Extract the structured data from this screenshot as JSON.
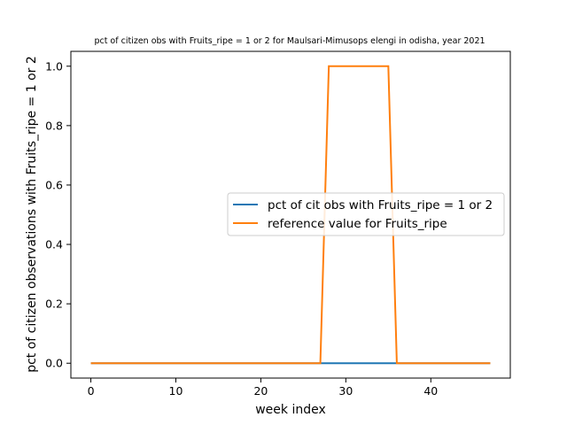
{
  "chart_data": {
    "type": "line",
    "title": "pct of citizen obs with Fruits_ripe = 1 or 2 for Maulsari-Mimusops elengi in odisha, year 2021",
    "xlabel": "week index",
    "ylabel": "pct of citizen observations with Fruits_ripe = 1 or 2",
    "xlim": [
      -2.35,
      49.35
    ],
    "ylim": [
      -0.05,
      1.05
    ],
    "xticks": [
      0,
      10,
      20,
      30,
      40
    ],
    "yticks": [
      0.0,
      0.2,
      0.4,
      0.6,
      0.8,
      1.0
    ],
    "xtick_labels": [
      "0",
      "10",
      "20",
      "30",
      "40"
    ],
    "ytick_labels": [
      "0.0",
      "0.2",
      "0.4",
      "0.6",
      "0.8",
      "1.0"
    ],
    "grid": false,
    "legend_position": "center-right",
    "series": [
      {
        "name": "pct of cit obs with Fruits_ripe = 1 or 2",
        "color": "#1f77b4",
        "x": [
          0,
          47
        ],
        "y": [
          0,
          0
        ]
      },
      {
        "name": "reference value for Fruits_ripe",
        "color": "#ff7f0e",
        "x": [
          0,
          27,
          28,
          35,
          36,
          47
        ],
        "y": [
          0,
          0,
          1,
          1,
          0,
          0
        ]
      }
    ]
  }
}
